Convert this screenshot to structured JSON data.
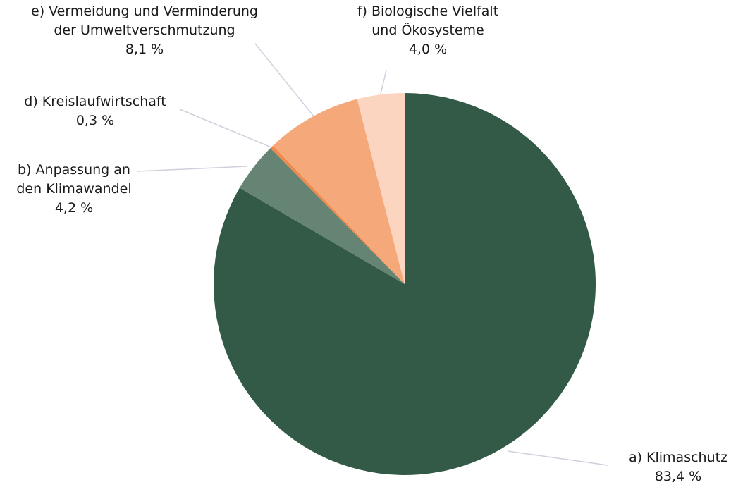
{
  "chart_data": {
    "type": "pie",
    "categories": [
      "a) Klimaschutz",
      "b) Anpassung an\nden Klimawandel",
      "d) Kreislaufwirtschaft",
      "e) Vermeidung und Verminderung\nder Umweltverschmutzung",
      "f) Biologische Vielfalt\nund Ökosysteme"
    ],
    "values": [
      83.4,
      4.2,
      0.3,
      8.1,
      4.0
    ],
    "value_labels": [
      "83,4 %",
      "4,2 %",
      "0,3 %",
      "8,1 %",
      "4,0 %"
    ],
    "colors": [
      "#335a47",
      "#658473",
      "#f08a4b",
      "#f5a97a",
      "#fbd5bf"
    ]
  }
}
